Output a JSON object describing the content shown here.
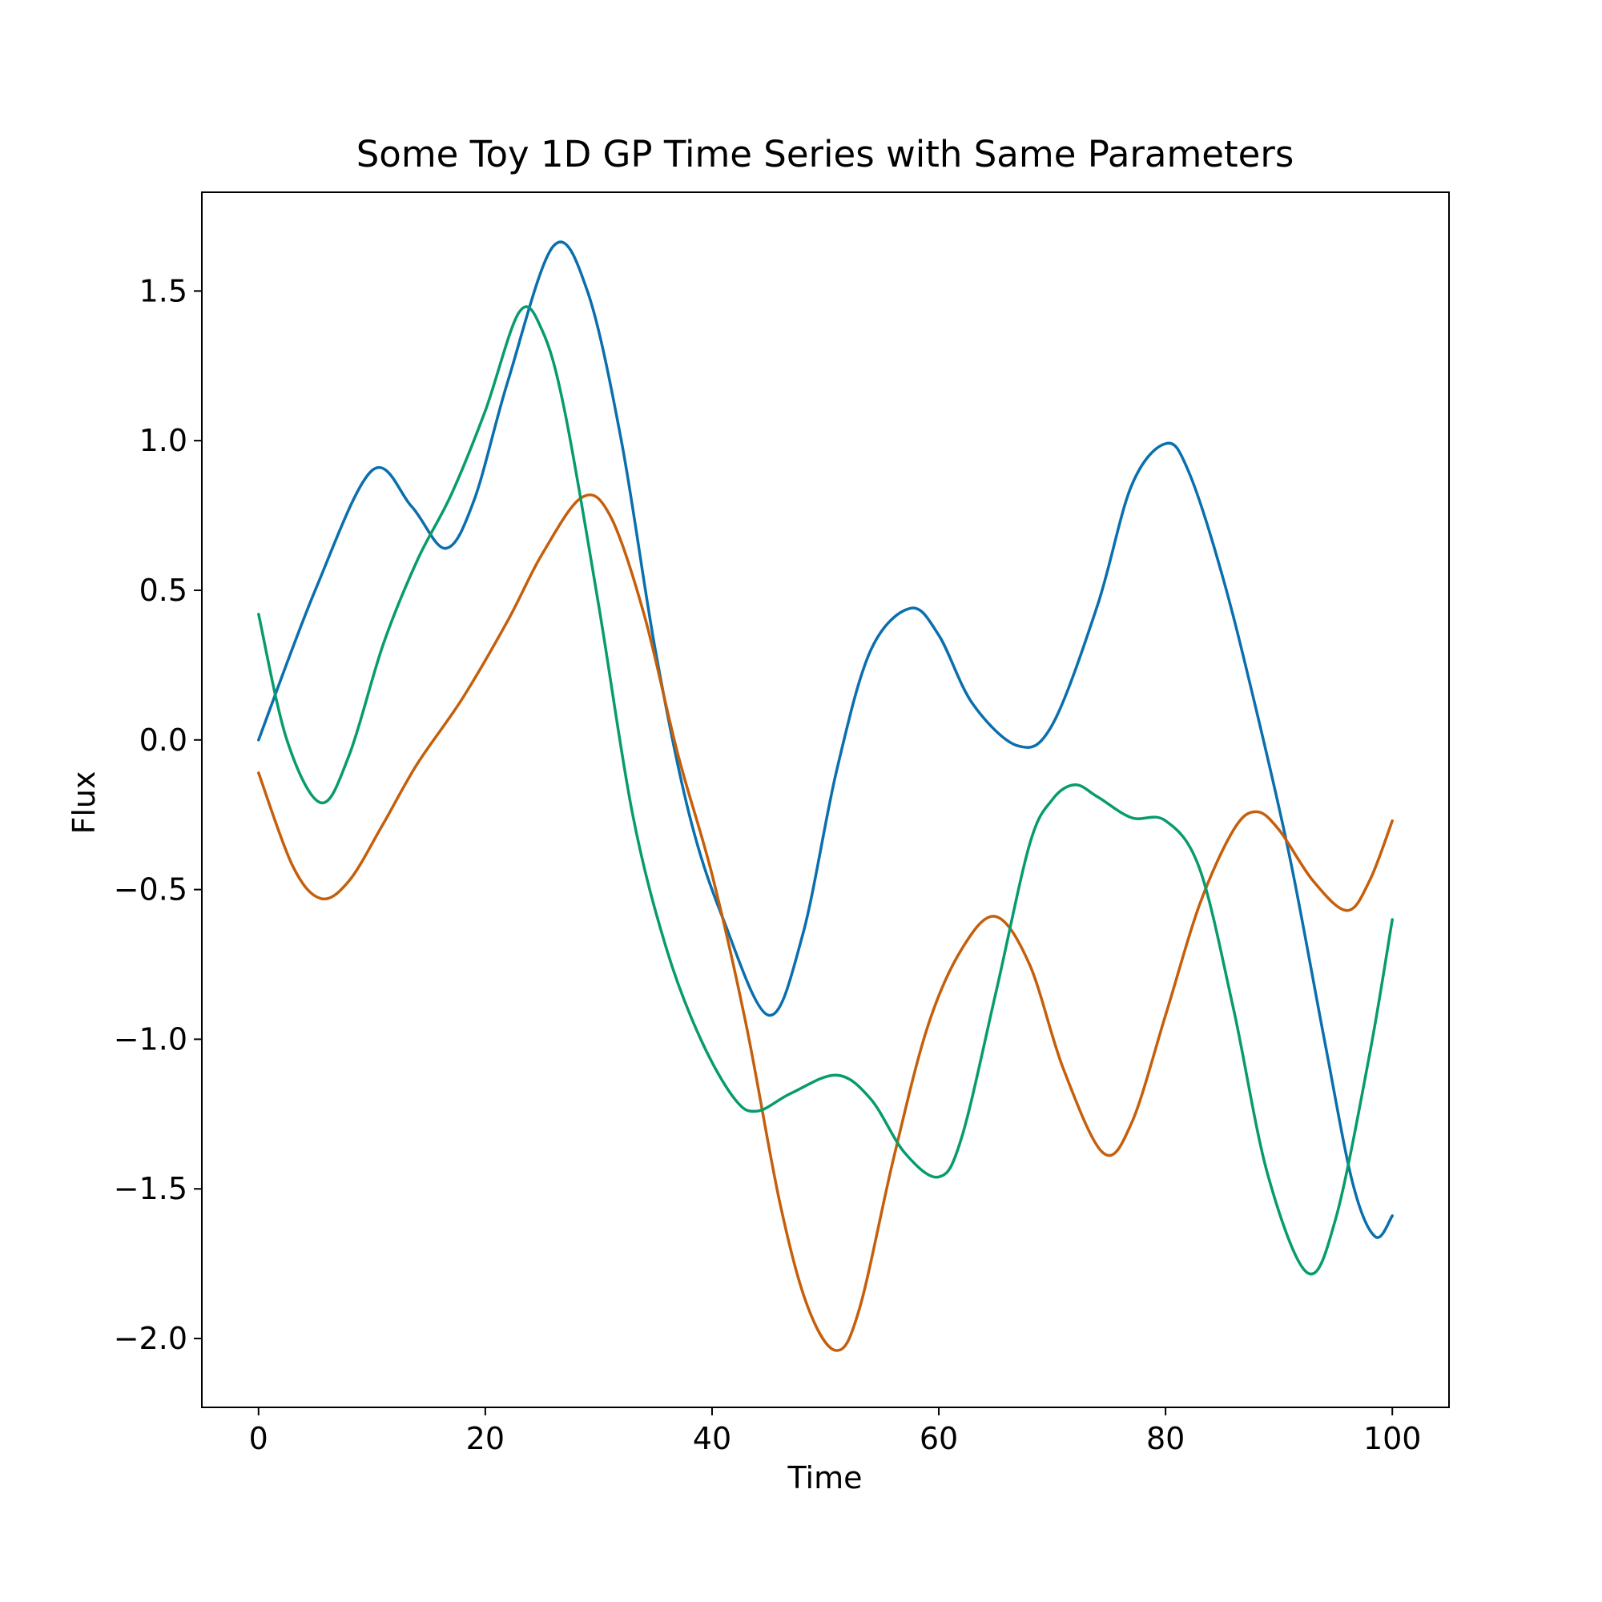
{
  "chart_data": {
    "type": "line",
    "title": "Some Toy 1D GP Time Series with Same Parameters",
    "xlabel": "Time",
    "ylabel": "Flux",
    "xlim": [
      -5,
      105
    ],
    "ylim": [
      -2.23,
      1.83
    ],
    "xticks": [
      0,
      20,
      40,
      60,
      80,
      100
    ],
    "xtick_labels": [
      "0",
      "20",
      "40",
      "60",
      "80",
      "100"
    ],
    "yticks": [
      1.5,
      1.0,
      0.5,
      0.0,
      -0.5,
      -1.0,
      -1.5,
      -2.0
    ],
    "ytick_labels": [
      "1.5",
      "1.0",
      "0.5",
      "0.0",
      "−0.5",
      "−1.0",
      "−1.5",
      "−2.0"
    ],
    "grid": false,
    "legend": "none",
    "series": [
      {
        "color": "#0a6fae",
        "points": [
          [
            0,
            0.0
          ],
          [
            5,
            0.5
          ],
          [
            10,
            0.9
          ],
          [
            13.5,
            0.78
          ],
          [
            16.5,
            0.64
          ],
          [
            19,
            0.8
          ],
          [
            22,
            1.2
          ],
          [
            26,
            1.65
          ],
          [
            29,
            1.5
          ],
          [
            32,
            1.0
          ],
          [
            35,
            0.3
          ],
          [
            38,
            -0.25
          ],
          [
            41,
            -0.6
          ],
          [
            45,
            -0.92
          ],
          [
            48,
            -0.65
          ],
          [
            51,
            -0.1
          ],
          [
            54,
            0.3
          ],
          [
            57.5,
            0.44
          ],
          [
            60,
            0.35
          ],
          [
            63,
            0.12
          ],
          [
            67,
            -0.02
          ],
          [
            70,
            0.05
          ],
          [
            74,
            0.45
          ],
          [
            77,
            0.85
          ],
          [
            80,
            0.99
          ],
          [
            82,
            0.9
          ],
          [
            85,
            0.55
          ],
          [
            88,
            0.1
          ],
          [
            91,
            -0.4
          ],
          [
            94,
            -1.0
          ],
          [
            96.5,
            -1.48
          ],
          [
            98.5,
            -1.66
          ],
          [
            100,
            -1.59
          ]
        ]
      },
      {
        "color": "#c55f0c",
        "points": [
          [
            0,
            -0.11
          ],
          [
            3,
            -0.42
          ],
          [
            5.5,
            -0.53
          ],
          [
            8,
            -0.47
          ],
          [
            11,
            -0.28
          ],
          [
            14,
            -0.08
          ],
          [
            18,
            0.14
          ],
          [
            22,
            0.4
          ],
          [
            25,
            0.62
          ],
          [
            28.5,
            0.81
          ],
          [
            31,
            0.75
          ],
          [
            34,
            0.42
          ],
          [
            37,
            -0.05
          ],
          [
            40,
            -0.45
          ],
          [
            43,
            -0.95
          ],
          [
            46,
            -1.55
          ],
          [
            48.5,
            -1.9
          ],
          [
            51,
            -2.04
          ],
          [
            53,
            -1.9
          ],
          [
            56,
            -1.4
          ],
          [
            59,
            -0.96
          ],
          [
            62,
            -0.7
          ],
          [
            65,
            -0.59
          ],
          [
            68,
            -0.75
          ],
          [
            71,
            -1.1
          ],
          [
            74.5,
            -1.38
          ],
          [
            77,
            -1.28
          ],
          [
            80,
            -0.92
          ],
          [
            83,
            -0.55
          ],
          [
            86,
            -0.3
          ],
          [
            88,
            -0.24
          ],
          [
            90,
            -0.3
          ],
          [
            93,
            -0.47
          ],
          [
            96,
            -0.57
          ],
          [
            98,
            -0.47
          ],
          [
            100,
            -0.27
          ]
        ]
      },
      {
        "color": "#079b6e",
        "points": [
          [
            0,
            0.42
          ],
          [
            2.5,
            0.0
          ],
          [
            5.5,
            -0.21
          ],
          [
            8,
            -0.05
          ],
          [
            11,
            0.32
          ],
          [
            14,
            0.6
          ],
          [
            17,
            0.82
          ],
          [
            20,
            1.1
          ],
          [
            23,
            1.43
          ],
          [
            25,
            1.37
          ],
          [
            27,
            1.1
          ],
          [
            30,
            0.45
          ],
          [
            33,
            -0.25
          ],
          [
            36,
            -0.7
          ],
          [
            39,
            -1.0
          ],
          [
            42,
            -1.2
          ],
          [
            44,
            -1.24
          ],
          [
            47,
            -1.18
          ],
          [
            51,
            -1.12
          ],
          [
            54,
            -1.2
          ],
          [
            57,
            -1.38
          ],
          [
            60,
            -1.46
          ],
          [
            62,
            -1.33
          ],
          [
            65,
            -0.85
          ],
          [
            68,
            -0.35
          ],
          [
            70,
            -0.2
          ],
          [
            72,
            -0.15
          ],
          [
            74,
            -0.19
          ],
          [
            77,
            -0.26
          ],
          [
            80,
            -0.27
          ],
          [
            83,
            -0.43
          ],
          [
            86,
            -0.9
          ],
          [
            89,
            -1.45
          ],
          [
            92.5,
            -1.78
          ],
          [
            95,
            -1.6
          ],
          [
            98,
            -1.05
          ],
          [
            100,
            -0.6
          ]
        ]
      }
    ]
  }
}
